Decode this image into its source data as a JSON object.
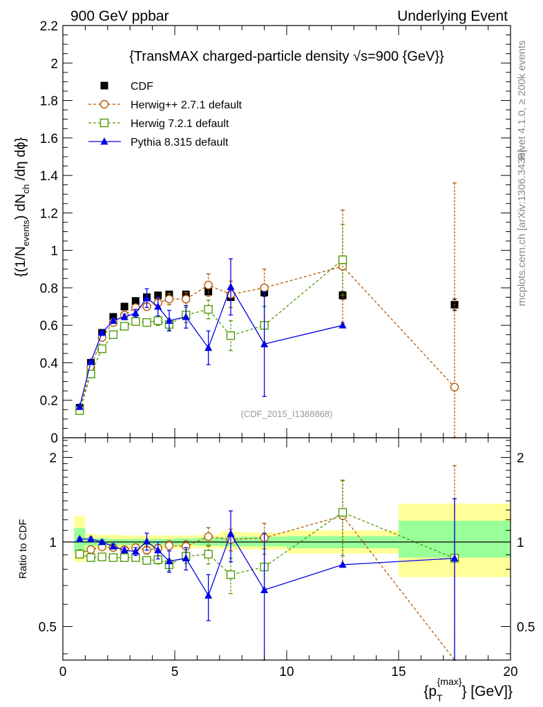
{
  "header": {
    "left": "900 GeV ppbar",
    "right": "Underlying Event"
  },
  "side_labels": {
    "rivet": "Rivet 4.1.0, ≥ 200k events",
    "mcplots": "mcplots.cern.ch [arXiv:1306.3436]"
  },
  "chart_data": [
    {
      "type": "line",
      "title": "{TransMAX charged-particle density √s=900 {GeV}}",
      "ylabel": "{(1/N_events) dN_ch /dη dϕ}",
      "xlabel": "",
      "watermark": "(CDF_2015_I1388868)",
      "xlim": [
        0,
        20
      ],
      "ylim": [
        0,
        2.2
      ],
      "yticks": [
        {
          "v": 0,
          "label": "0"
        },
        {
          "v": 0.2,
          "label": "0.2"
        },
        {
          "v": 0.4,
          "label": "0.4"
        },
        {
          "v": 0.6,
          "label": "0.6"
        },
        {
          "v": 0.8,
          "label": "0.8"
        },
        {
          "v": 1.0,
          "label": "1"
        },
        {
          "v": 1.2,
          "label": "1.2"
        },
        {
          "v": 1.4,
          "label": "1.4"
        },
        {
          "v": 1.6,
          "label": "1.6"
        },
        {
          "v": 1.8,
          "label": "1.8"
        },
        {
          "v": 2.0,
          "label": "2"
        },
        {
          "v": 2.2,
          "label": "2.2"
        }
      ],
      "legend": [
        "CDF",
        "Herwig++ 2.7.1 default",
        "Herwig 7.2.1 default",
        "Pythia 8.315 default"
      ],
      "series": [
        {
          "name": "CDF",
          "color": "#000000",
          "marker": "square-filled",
          "line": "none",
          "x": [
            0.75,
            1.25,
            1.75,
            2.25,
            2.75,
            3.25,
            3.75,
            4.25,
            4.75,
            5.5,
            6.5,
            7.5,
            9.0,
            12.5,
            17.5
          ],
          "y": [
            0.16,
            0.4,
            0.56,
            0.645,
            0.7,
            0.73,
            0.75,
            0.76,
            0.765,
            0.765,
            0.78,
            0.75,
            0.775,
            0.76,
            0.71
          ],
          "err": [
            0.01,
            0.01,
            0.01,
            0.01,
            0.01,
            0.01,
            0.01,
            0.01,
            0.01,
            0.01,
            0.015,
            0.015,
            0.02,
            0.02,
            0.03
          ]
        },
        {
          "name": "Herwig++ 2.7.1 default",
          "color": "#b35900",
          "marker": "circle-open",
          "line": "dashed",
          "x": [
            0.75,
            1.25,
            1.75,
            2.25,
            2.75,
            3.25,
            3.75,
            4.25,
            4.75,
            5.5,
            6.5,
            7.5,
            9.0,
            12.5,
            17.5
          ],
          "y": [
            0.145,
            0.375,
            0.535,
            0.615,
            0.655,
            0.695,
            0.7,
            0.72,
            0.74,
            0.74,
            0.815,
            0.765,
            0.8,
            0.915,
            0.27
          ],
          "err": [
            0.005,
            0.01,
            0.01,
            0.01,
            0.01,
            0.015,
            0.02,
            0.025,
            0.03,
            0.035,
            0.06,
            0.07,
            0.1,
            0.3,
            1.09
          ]
        },
        {
          "name": "Herwig 7.2.1 default",
          "color": "#4d9900",
          "marker": "square-open",
          "line": "dashed",
          "x": [
            0.75,
            1.25,
            1.75,
            2.25,
            2.75,
            3.25,
            3.75,
            4.25,
            4.75,
            5.5,
            6.5,
            7.5,
            9.0,
            12.5
          ],
          "y": [
            0.145,
            0.34,
            0.475,
            0.55,
            0.595,
            0.62,
            0.615,
            0.625,
            0.605,
            0.655,
            0.685,
            0.545,
            0.6,
            0.95
          ],
          "err": [
            0.005,
            0.01,
            0.01,
            0.015,
            0.015,
            0.02,
            0.02,
            0.025,
            0.03,
            0.04,
            0.05,
            0.08,
            0.1,
            0.19
          ]
        },
        {
          "name": "Pythia 8.315 default",
          "color": "#0000e6",
          "marker": "triangle-filled",
          "line": "solid",
          "x": [
            0.75,
            1.25,
            1.75,
            2.25,
            2.75,
            3.25,
            3.75,
            4.25,
            4.75,
            5.5,
            6.5,
            7.5,
            9.0,
            12.5
          ],
          "y": [
            0.165,
            0.405,
            0.56,
            0.625,
            0.645,
            0.665,
            0.745,
            0.7,
            0.625,
            0.645,
            0.48,
            0.805,
            0.5,
            0.6
          ],
          "err": [
            0.005,
            0.01,
            0.01,
            0.015,
            0.015,
            0.02,
            0.05,
            0.05,
            0.055,
            0.06,
            0.09,
            0.15,
            0.28,
            0.0
          ]
        }
      ]
    },
    {
      "type": "line",
      "title": "",
      "ylabel": "Ratio to CDF",
      "xlabel": "{p_T^{max}} [GeV]}",
      "xlim": [
        0,
        20
      ],
      "ylim": [
        0.38,
        2.35
      ],
      "yscale": "log",
      "yticks": [
        {
          "v": 0.5,
          "label": "0.5"
        },
        {
          "v": 1,
          "label": "1"
        },
        {
          "v": 2,
          "label": "2"
        }
      ],
      "xticks": [
        {
          "v": 0,
          "label": "0"
        },
        {
          "v": 5,
          "label": "5"
        },
        {
          "v": 10,
          "label": "10"
        },
        {
          "v": 15,
          "label": "15"
        },
        {
          "v": 20,
          "label": "20"
        }
      ],
      "bands": [
        {
          "x0": 0.5,
          "x1": 1.0,
          "lo": 0.85,
          "hi": 1.24,
          "lo_in": 0.92,
          "hi_in": 1.12
        },
        {
          "x0": 1.0,
          "x1": 1.5,
          "lo": 0.94,
          "hi": 1.07,
          "lo_in": 0.97,
          "hi_in": 1.03
        },
        {
          "x0": 1.5,
          "x1": 2.0,
          "lo": 0.95,
          "hi": 1.06,
          "lo_in": 0.97,
          "hi_in": 1.03
        },
        {
          "x0": 2.0,
          "x1": 2.5,
          "lo": 0.95,
          "hi": 1.06,
          "lo_in": 0.975,
          "hi_in": 1.025
        },
        {
          "x0": 2.5,
          "x1": 3.0,
          "lo": 0.95,
          "hi": 1.055,
          "lo_in": 0.975,
          "hi_in": 1.025
        },
        {
          "x0": 3.0,
          "x1": 3.5,
          "lo": 0.95,
          "hi": 1.055,
          "lo_in": 0.975,
          "hi_in": 1.025
        },
        {
          "x0": 3.5,
          "x1": 4.0,
          "lo": 0.95,
          "hi": 1.055,
          "lo_in": 0.975,
          "hi_in": 1.025
        },
        {
          "x0": 4.0,
          "x1": 4.5,
          "lo": 0.95,
          "hi": 1.055,
          "lo_in": 0.975,
          "hi_in": 1.025
        },
        {
          "x0": 4.5,
          "x1": 5.0,
          "lo": 0.95,
          "hi": 1.055,
          "lo_in": 0.975,
          "hi_in": 1.025
        },
        {
          "x0": 5.0,
          "x1": 6.0,
          "lo": 0.95,
          "hi": 1.055,
          "lo_in": 0.975,
          "hi_in": 1.03
        },
        {
          "x0": 6.0,
          "x1": 7.0,
          "lo": 0.95,
          "hi": 1.06,
          "lo_in": 0.97,
          "hi_in": 1.035
        },
        {
          "x0": 7.0,
          "x1": 8.0,
          "lo": 0.94,
          "hi": 1.09,
          "lo_in": 0.965,
          "hi_in": 1.04
        },
        {
          "x0": 8.0,
          "x1": 10.0,
          "lo": 0.94,
          "hi": 1.08,
          "lo_in": 0.965,
          "hi_in": 1.045
        },
        {
          "x0": 10.0,
          "x1": 15.0,
          "lo": 0.91,
          "hi": 1.1,
          "lo_in": 0.95,
          "hi_in": 1.05
        },
        {
          "x0": 15.0,
          "x1": 20.0,
          "lo": 0.75,
          "hi": 1.37,
          "lo_in": 0.88,
          "hi_in": 1.19
        }
      ],
      "series": [
        {
          "name": "Herwig++ 2.7.1 default",
          "color": "#b35900",
          "marker": "circle-open",
          "line": "dashed",
          "x": [
            0.75,
            1.25,
            1.75,
            2.25,
            2.75,
            3.25,
            3.75,
            4.25,
            4.75,
            5.5,
            6.5,
            7.5,
            9.0,
            12.5,
            17.5
          ],
          "y": [
            0.91,
            0.94,
            0.96,
            0.955,
            0.94,
            0.955,
            0.935,
            0.95,
            0.97,
            0.965,
            1.045,
            1.02,
            1.035,
            1.24,
            0.37
          ],
          "err": [
            0.01,
            0.015,
            0.015,
            0.015,
            0.015,
            0.02,
            0.03,
            0.03,
            0.04,
            0.045,
            0.08,
            0.09,
            0.13,
            0.42,
            1.5
          ]
        },
        {
          "name": "Herwig 7.2.1 default",
          "color": "#4d9900",
          "marker": "square-open",
          "line": "dashed",
          "x": [
            0.75,
            1.25,
            1.75,
            2.25,
            2.75,
            3.25,
            3.75,
            4.25,
            4.75,
            5.5,
            6.5,
            7.5,
            9.0,
            12.5,
            17.5
          ],
          "y": [
            0.905,
            0.88,
            0.885,
            0.88,
            0.88,
            0.88,
            0.86,
            0.865,
            0.83,
            0.89,
            0.905,
            0.765,
            0.815,
            1.275,
            0.875
          ],
          "err": [
            0.01,
            0.015,
            0.015,
            0.02,
            0.02,
            0.025,
            0.025,
            0.03,
            0.04,
            0.05,
            0.07,
            0.11,
            0.13,
            0.38,
            0.0
          ]
        },
        {
          "name": "Pythia 8.315 default",
          "color": "#0000e6",
          "marker": "triangle-filled",
          "line": "solid",
          "x": [
            0.75,
            1.25,
            1.75,
            2.25,
            2.75,
            3.25,
            3.75,
            4.25,
            4.75,
            5.5,
            6.5,
            7.5,
            9.0,
            12.5,
            17.5
          ],
          "y": [
            1.025,
            1.025,
            1.0,
            0.965,
            0.935,
            0.925,
            1.005,
            0.935,
            0.855,
            0.875,
            0.645,
            1.07,
            0.675,
            0.83,
            0.875
          ],
          "err": [
            0.01,
            0.015,
            0.015,
            0.02,
            0.02,
            0.03,
            0.07,
            0.065,
            0.075,
            0.08,
            0.12,
            0.22,
            0.4,
            0.0,
            0.55
          ]
        }
      ]
    }
  ]
}
